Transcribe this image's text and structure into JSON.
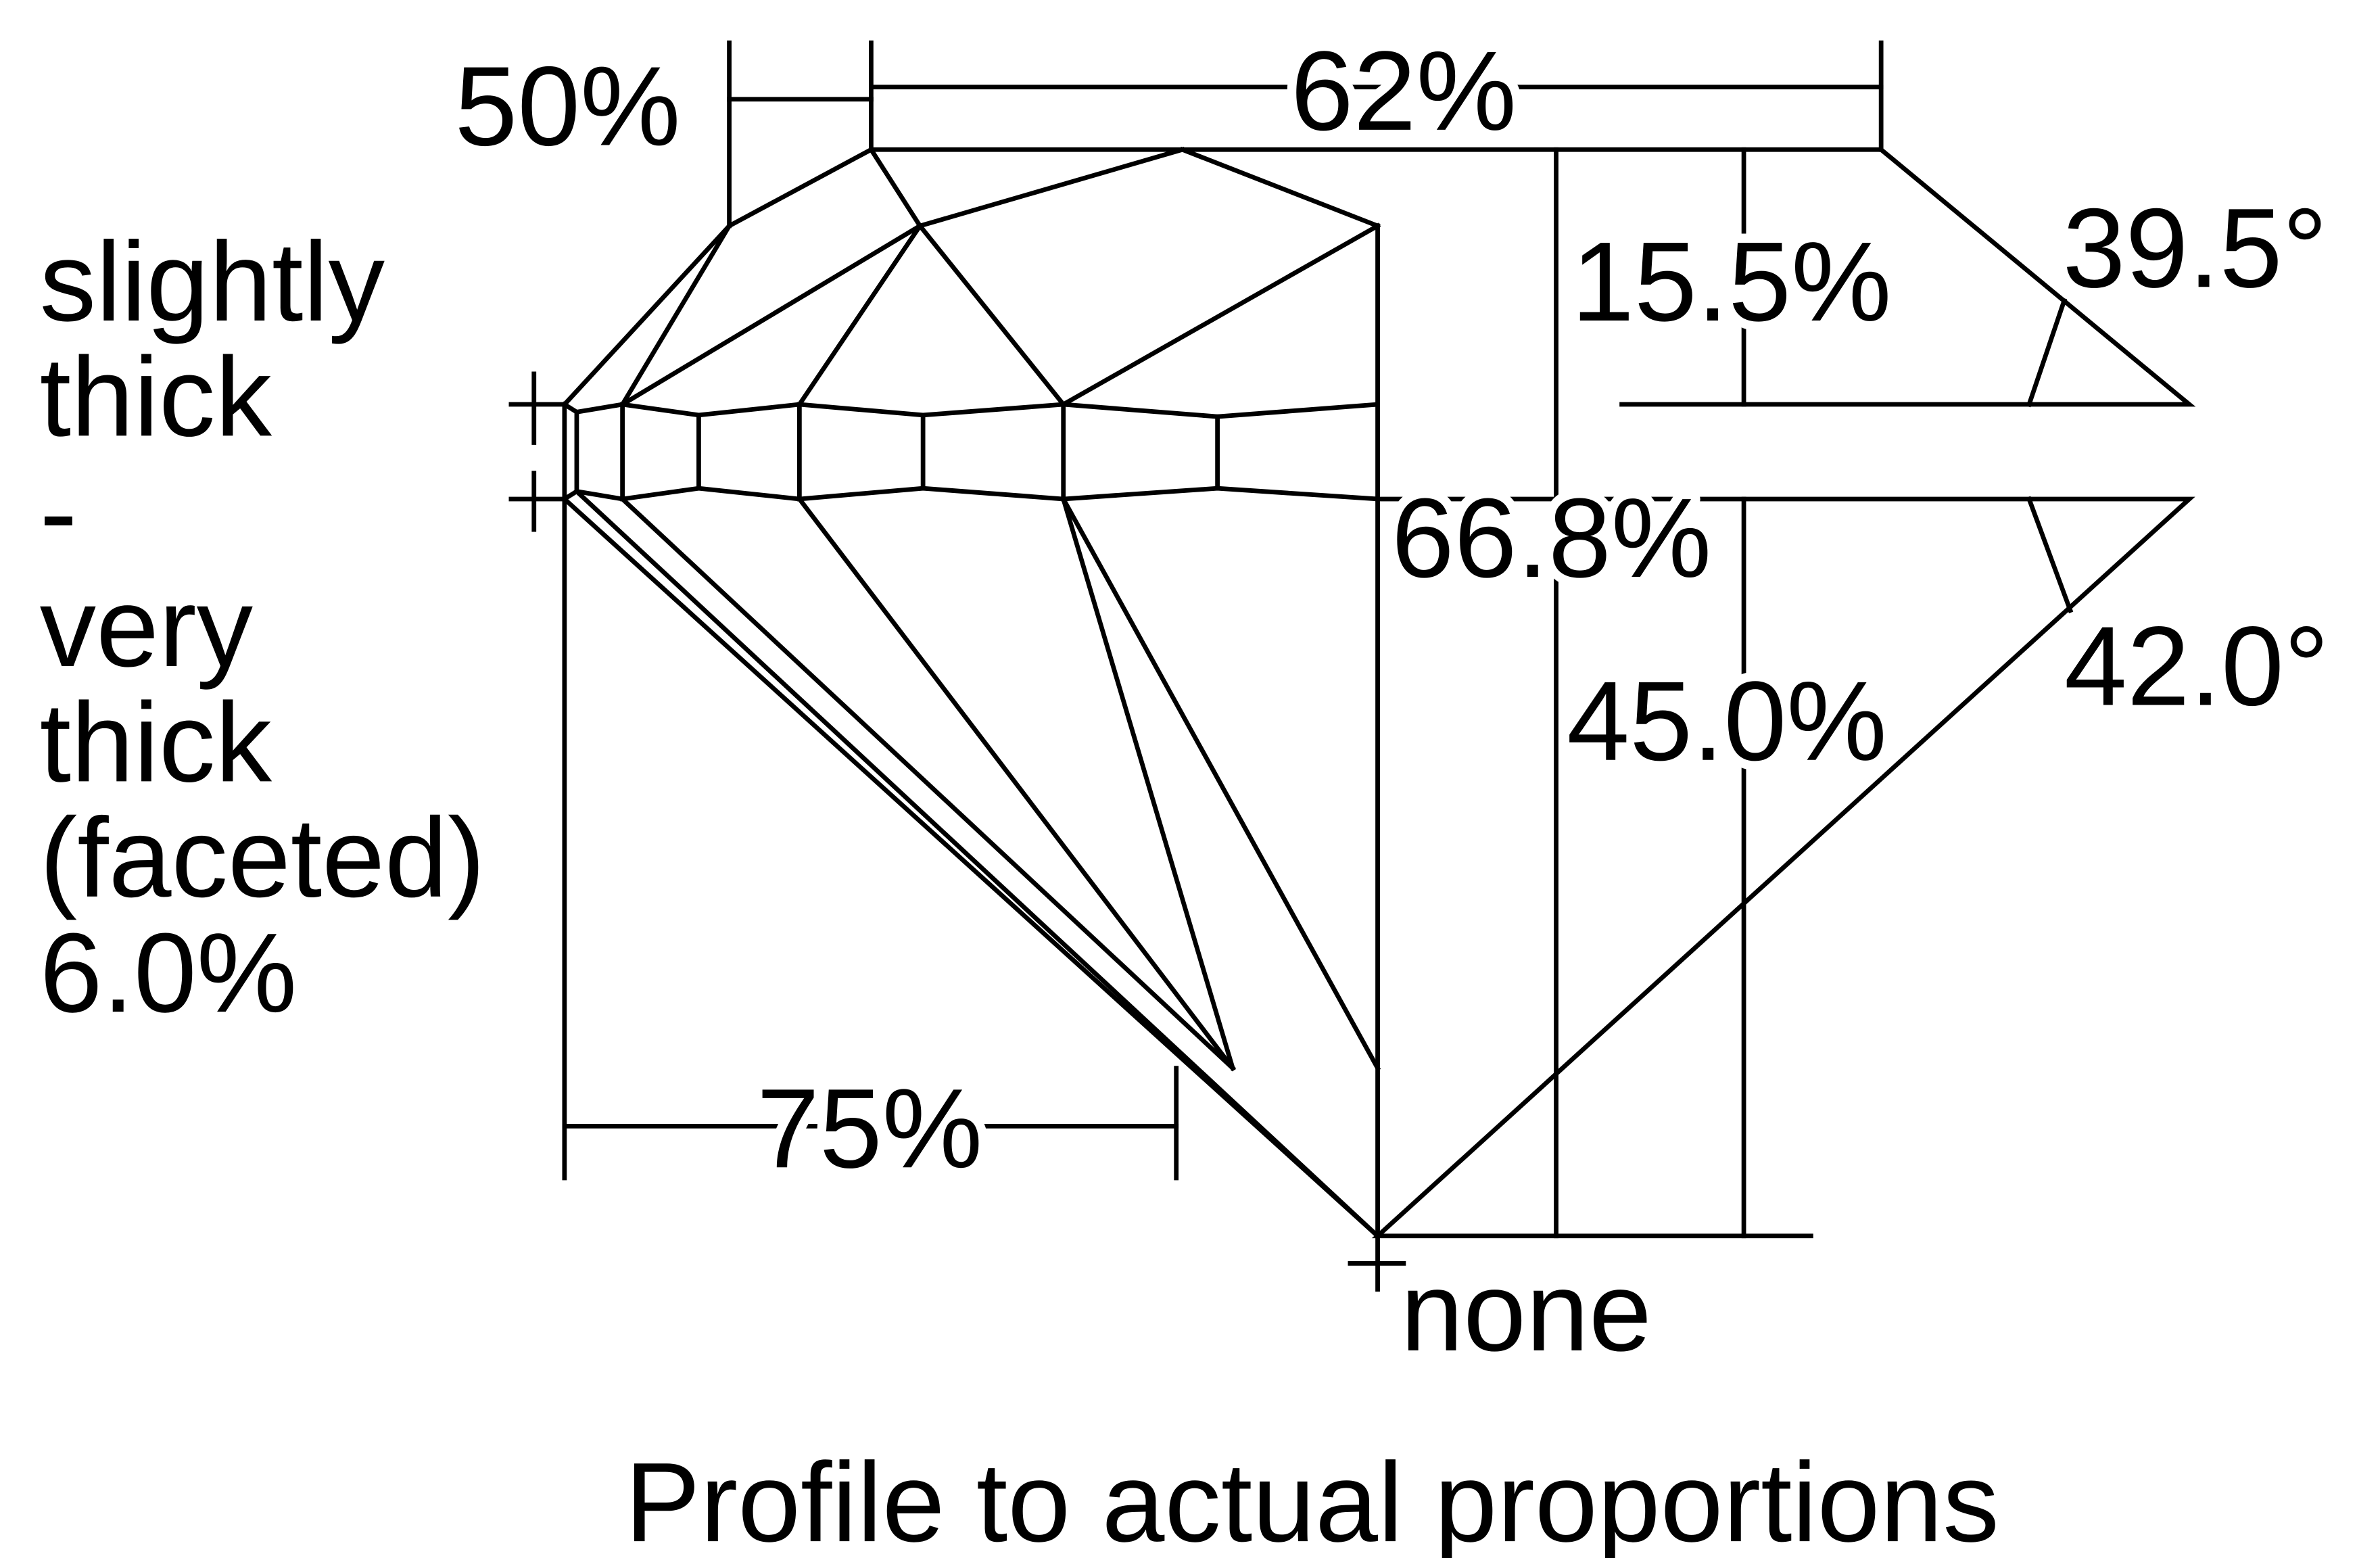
{
  "labels": {
    "crown_table_dist": "50%",
    "table": "62%",
    "crown_height": "15.5%",
    "crown_angle": "39.5°",
    "total_depth": "66.8%",
    "pavilion_depth": "45.0%",
    "pavilion_angle": "42.0°",
    "lower_half": "75%",
    "culet": "none"
  },
  "girdle": {
    "lines": [
      "slightly",
      "thick",
      "-",
      "very",
      "thick",
      "(faceted)",
      "6.0%"
    ]
  },
  "caption": "Profile to actual proportions"
}
